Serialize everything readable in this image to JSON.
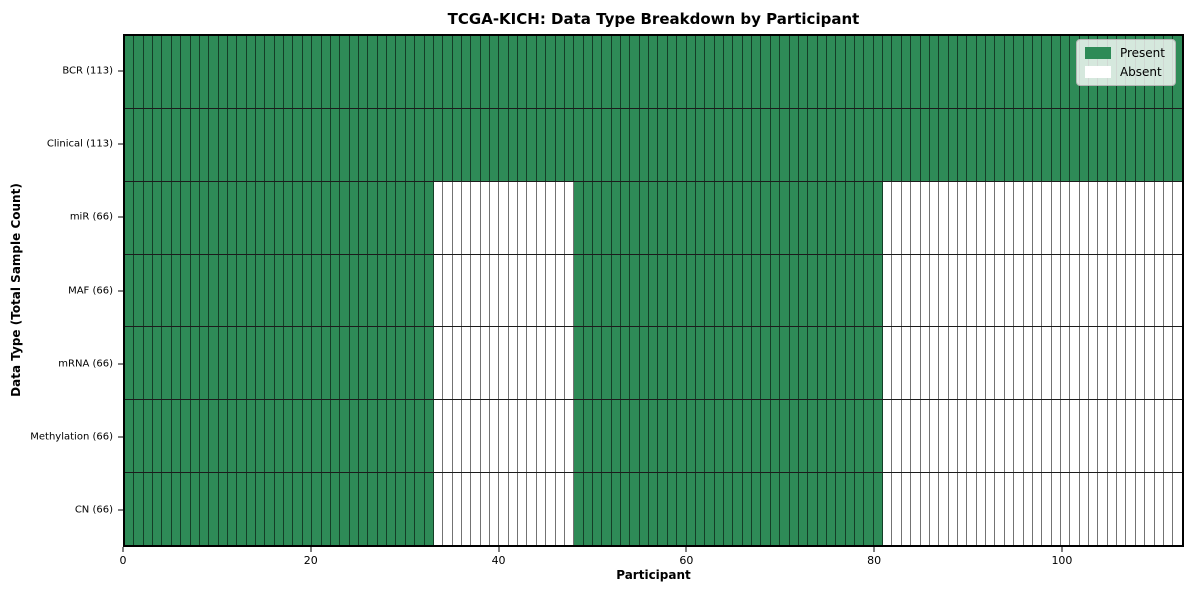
{
  "chart_data": {
    "type": "heatmap",
    "title": "TCGA-KICH: Data Type Breakdown by Participant",
    "xlabel": "Participant",
    "ylabel": "Data Type (Total Sample Count)",
    "n_participants": 113,
    "xlim": [
      0,
      113
    ],
    "x_ticks": [
      0,
      20,
      40,
      60,
      80,
      100
    ],
    "grid": false,
    "legend_position": "upper right",
    "colors": {
      "present": "#2e8b57",
      "absent": "#ffffff"
    },
    "legend_items": [
      {
        "label": "Present",
        "color": "#2e8b57"
      },
      {
        "label": "Absent",
        "color": "#ffffff"
      }
    ],
    "rows": [
      {
        "label": "BCR (113)",
        "data_type": "BCR",
        "total": 113,
        "present_ranges": [
          [
            0,
            113
          ]
        ]
      },
      {
        "label": "Clinical (113)",
        "data_type": "Clinical",
        "total": 113,
        "present_ranges": [
          [
            0,
            113
          ]
        ]
      },
      {
        "label": "miR (66)",
        "data_type": "miR",
        "total": 66,
        "present_ranges": [
          [
            0,
            33
          ],
          [
            48,
            81
          ]
        ]
      },
      {
        "label": "MAF (66)",
        "data_type": "MAF",
        "total": 66,
        "present_ranges": [
          [
            0,
            33
          ],
          [
            48,
            81
          ]
        ]
      },
      {
        "label": "mRNA (66)",
        "data_type": "mRNA",
        "total": 66,
        "present_ranges": [
          [
            0,
            33
          ],
          [
            48,
            81
          ]
        ]
      },
      {
        "label": "Methylation (66)",
        "data_type": "Methylation",
        "total": 66,
        "present_ranges": [
          [
            0,
            33
          ],
          [
            48,
            81
          ]
        ]
      },
      {
        "label": "CN (66)",
        "data_type": "CN",
        "total": 66,
        "present_ranges": [
          [
            0,
            33
          ],
          [
            48,
            81
          ]
        ]
      }
    ]
  }
}
